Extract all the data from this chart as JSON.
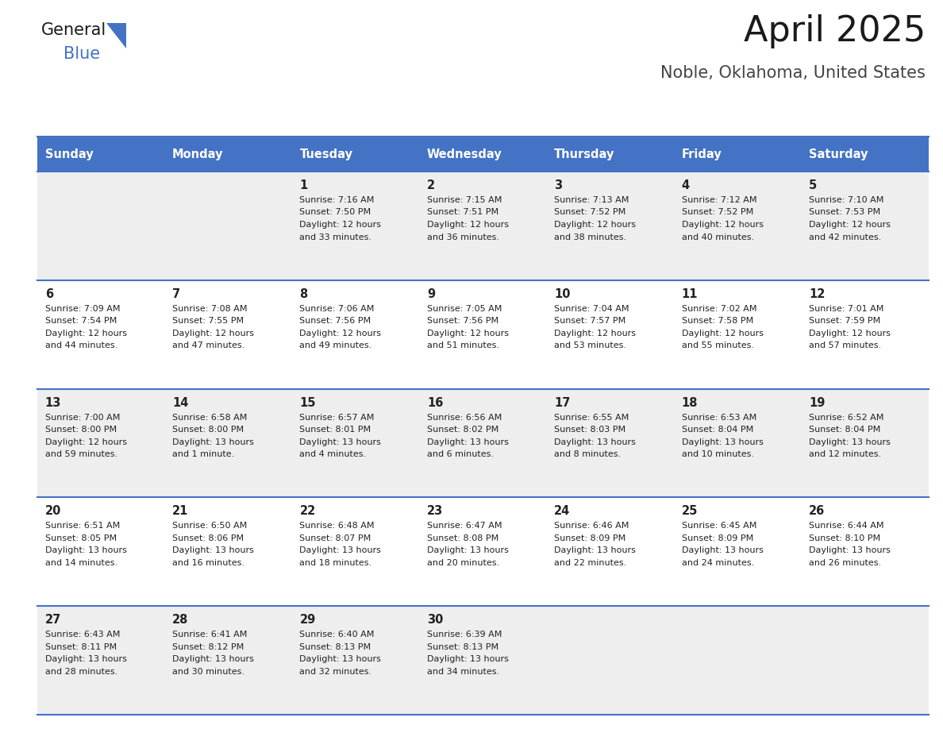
{
  "title": "April 2025",
  "subtitle": "Noble, Oklahoma, United States",
  "header_color": "#4472C4",
  "header_text_color": "#FFFFFF",
  "bg_color": "#FFFFFF",
  "cell_bg_even": "#EEEEEE",
  "cell_bg_odd": "#FFFFFF",
  "border_color": "#4472C4",
  "text_color": "#222222",
  "days_of_week": [
    "Sunday",
    "Monday",
    "Tuesday",
    "Wednesday",
    "Thursday",
    "Friday",
    "Saturday"
  ],
  "weeks": [
    [
      {
        "day": "",
        "sunrise": "",
        "sunset": "",
        "daylight1": "",
        "daylight2": ""
      },
      {
        "day": "",
        "sunrise": "",
        "sunset": "",
        "daylight1": "",
        "daylight2": ""
      },
      {
        "day": "1",
        "sunrise": "Sunrise: 7:16 AM",
        "sunset": "Sunset: 7:50 PM",
        "daylight1": "Daylight: 12 hours",
        "daylight2": "and 33 minutes."
      },
      {
        "day": "2",
        "sunrise": "Sunrise: 7:15 AM",
        "sunset": "Sunset: 7:51 PM",
        "daylight1": "Daylight: 12 hours",
        "daylight2": "and 36 minutes."
      },
      {
        "day": "3",
        "sunrise": "Sunrise: 7:13 AM",
        "sunset": "Sunset: 7:52 PM",
        "daylight1": "Daylight: 12 hours",
        "daylight2": "and 38 minutes."
      },
      {
        "day": "4",
        "sunrise": "Sunrise: 7:12 AM",
        "sunset": "Sunset: 7:52 PM",
        "daylight1": "Daylight: 12 hours",
        "daylight2": "and 40 minutes."
      },
      {
        "day": "5",
        "sunrise": "Sunrise: 7:10 AM",
        "sunset": "Sunset: 7:53 PM",
        "daylight1": "Daylight: 12 hours",
        "daylight2": "and 42 minutes."
      }
    ],
    [
      {
        "day": "6",
        "sunrise": "Sunrise: 7:09 AM",
        "sunset": "Sunset: 7:54 PM",
        "daylight1": "Daylight: 12 hours",
        "daylight2": "and 44 minutes."
      },
      {
        "day": "7",
        "sunrise": "Sunrise: 7:08 AM",
        "sunset": "Sunset: 7:55 PM",
        "daylight1": "Daylight: 12 hours",
        "daylight2": "and 47 minutes."
      },
      {
        "day": "8",
        "sunrise": "Sunrise: 7:06 AM",
        "sunset": "Sunset: 7:56 PM",
        "daylight1": "Daylight: 12 hours",
        "daylight2": "and 49 minutes."
      },
      {
        "day": "9",
        "sunrise": "Sunrise: 7:05 AM",
        "sunset": "Sunset: 7:56 PM",
        "daylight1": "Daylight: 12 hours",
        "daylight2": "and 51 minutes."
      },
      {
        "day": "10",
        "sunrise": "Sunrise: 7:04 AM",
        "sunset": "Sunset: 7:57 PM",
        "daylight1": "Daylight: 12 hours",
        "daylight2": "and 53 minutes."
      },
      {
        "day": "11",
        "sunrise": "Sunrise: 7:02 AM",
        "sunset": "Sunset: 7:58 PM",
        "daylight1": "Daylight: 12 hours",
        "daylight2": "and 55 minutes."
      },
      {
        "day": "12",
        "sunrise": "Sunrise: 7:01 AM",
        "sunset": "Sunset: 7:59 PM",
        "daylight1": "Daylight: 12 hours",
        "daylight2": "and 57 minutes."
      }
    ],
    [
      {
        "day": "13",
        "sunrise": "Sunrise: 7:00 AM",
        "sunset": "Sunset: 8:00 PM",
        "daylight1": "Daylight: 12 hours",
        "daylight2": "and 59 minutes."
      },
      {
        "day": "14",
        "sunrise": "Sunrise: 6:58 AM",
        "sunset": "Sunset: 8:00 PM",
        "daylight1": "Daylight: 13 hours",
        "daylight2": "and 1 minute."
      },
      {
        "day": "15",
        "sunrise": "Sunrise: 6:57 AM",
        "sunset": "Sunset: 8:01 PM",
        "daylight1": "Daylight: 13 hours",
        "daylight2": "and 4 minutes."
      },
      {
        "day": "16",
        "sunrise": "Sunrise: 6:56 AM",
        "sunset": "Sunset: 8:02 PM",
        "daylight1": "Daylight: 13 hours",
        "daylight2": "and 6 minutes."
      },
      {
        "day": "17",
        "sunrise": "Sunrise: 6:55 AM",
        "sunset": "Sunset: 8:03 PM",
        "daylight1": "Daylight: 13 hours",
        "daylight2": "and 8 minutes."
      },
      {
        "day": "18",
        "sunrise": "Sunrise: 6:53 AM",
        "sunset": "Sunset: 8:04 PM",
        "daylight1": "Daylight: 13 hours",
        "daylight2": "and 10 minutes."
      },
      {
        "day": "19",
        "sunrise": "Sunrise: 6:52 AM",
        "sunset": "Sunset: 8:04 PM",
        "daylight1": "Daylight: 13 hours",
        "daylight2": "and 12 minutes."
      }
    ],
    [
      {
        "day": "20",
        "sunrise": "Sunrise: 6:51 AM",
        "sunset": "Sunset: 8:05 PM",
        "daylight1": "Daylight: 13 hours",
        "daylight2": "and 14 minutes."
      },
      {
        "day": "21",
        "sunrise": "Sunrise: 6:50 AM",
        "sunset": "Sunset: 8:06 PM",
        "daylight1": "Daylight: 13 hours",
        "daylight2": "and 16 minutes."
      },
      {
        "day": "22",
        "sunrise": "Sunrise: 6:48 AM",
        "sunset": "Sunset: 8:07 PM",
        "daylight1": "Daylight: 13 hours",
        "daylight2": "and 18 minutes."
      },
      {
        "day": "23",
        "sunrise": "Sunrise: 6:47 AM",
        "sunset": "Sunset: 8:08 PM",
        "daylight1": "Daylight: 13 hours",
        "daylight2": "and 20 minutes."
      },
      {
        "day": "24",
        "sunrise": "Sunrise: 6:46 AM",
        "sunset": "Sunset: 8:09 PM",
        "daylight1": "Daylight: 13 hours",
        "daylight2": "and 22 minutes."
      },
      {
        "day": "25",
        "sunrise": "Sunrise: 6:45 AM",
        "sunset": "Sunset: 8:09 PM",
        "daylight1": "Daylight: 13 hours",
        "daylight2": "and 24 minutes."
      },
      {
        "day": "26",
        "sunrise": "Sunrise: 6:44 AM",
        "sunset": "Sunset: 8:10 PM",
        "daylight1": "Daylight: 13 hours",
        "daylight2": "and 26 minutes."
      }
    ],
    [
      {
        "day": "27",
        "sunrise": "Sunrise: 6:43 AM",
        "sunset": "Sunset: 8:11 PM",
        "daylight1": "Daylight: 13 hours",
        "daylight2": "and 28 minutes."
      },
      {
        "day": "28",
        "sunrise": "Sunrise: 6:41 AM",
        "sunset": "Sunset: 8:12 PM",
        "daylight1": "Daylight: 13 hours",
        "daylight2": "and 30 minutes."
      },
      {
        "day": "29",
        "sunrise": "Sunrise: 6:40 AM",
        "sunset": "Sunset: 8:13 PM",
        "daylight1": "Daylight: 13 hours",
        "daylight2": "and 32 minutes."
      },
      {
        "day": "30",
        "sunrise": "Sunrise: 6:39 AM",
        "sunset": "Sunset: 8:13 PM",
        "daylight1": "Daylight: 13 hours",
        "daylight2": "and 34 minutes."
      },
      {
        "day": "",
        "sunrise": "",
        "sunset": "",
        "daylight1": "",
        "daylight2": ""
      },
      {
        "day": "",
        "sunrise": "",
        "sunset": "",
        "daylight1": "",
        "daylight2": ""
      },
      {
        "day": "",
        "sunrise": "",
        "sunset": "",
        "daylight1": "",
        "daylight2": ""
      }
    ]
  ]
}
